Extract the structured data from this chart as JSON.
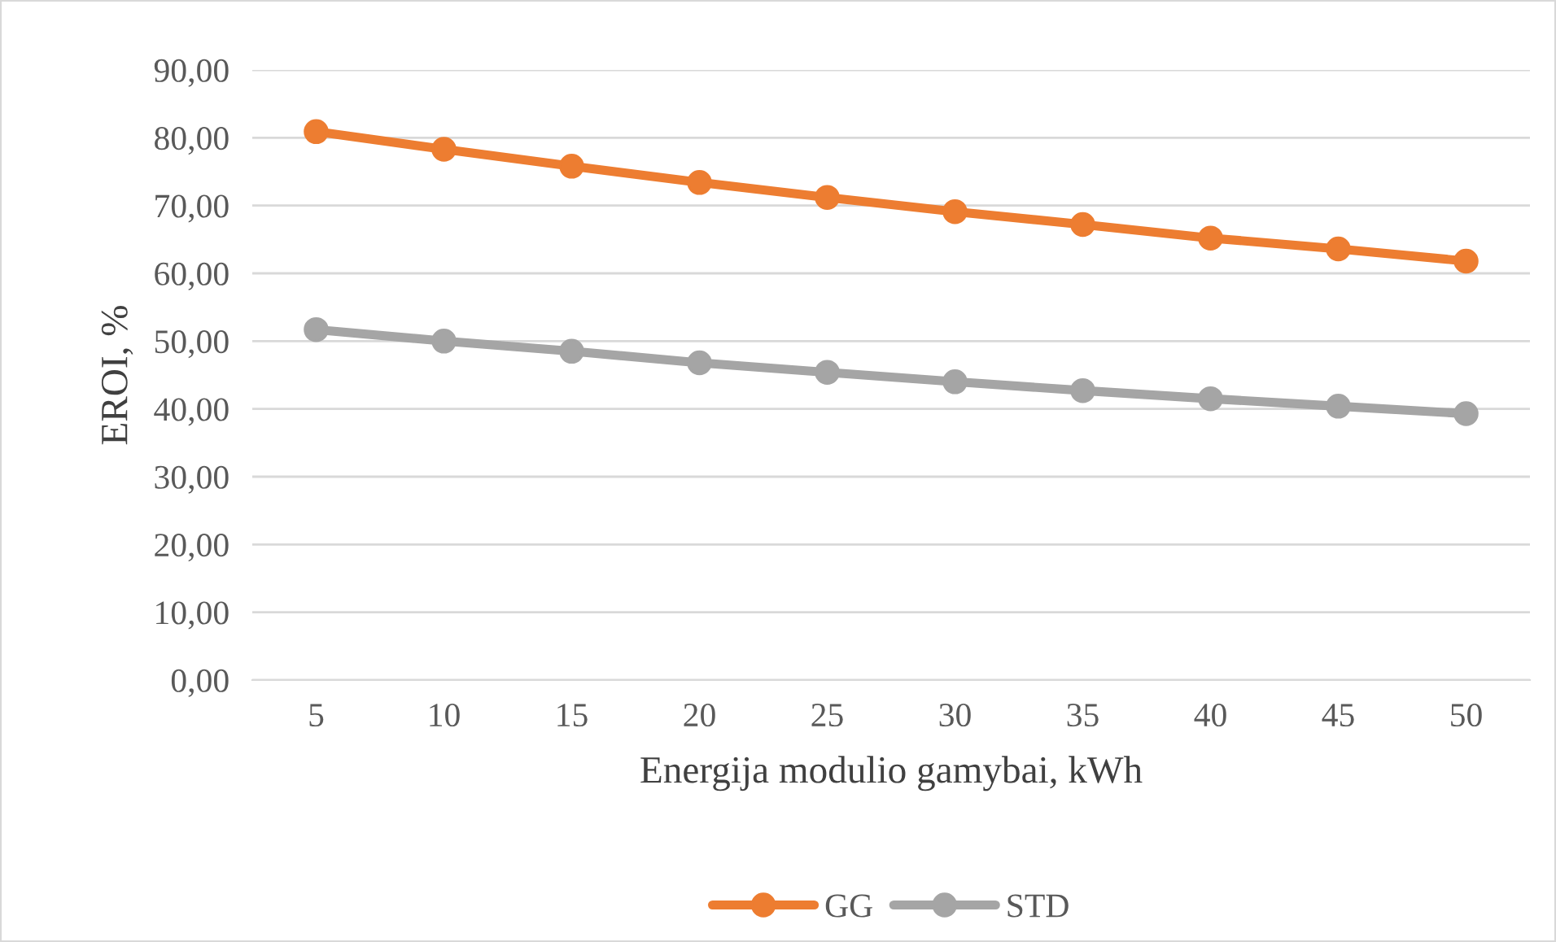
{
  "chart_data": {
    "type": "line",
    "xlabel": "Energija modulio gamybai, kWh",
    "ylabel": "EROI, %",
    "categories": [
      "5",
      "10",
      "15",
      "20",
      "25",
      "30",
      "35",
      "40",
      "45",
      "50"
    ],
    "series": [
      {
        "name": "GG",
        "color": "#ed7d31",
        "values": [
          80.9,
          78.3,
          75.8,
          73.4,
          71.2,
          69.1,
          67.2,
          65.2,
          63.6,
          61.8
        ]
      },
      {
        "name": "STD",
        "color": "#a5a5a5",
        "values": [
          51.7,
          50.0,
          48.5,
          46.8,
          45.4,
          44.0,
          42.7,
          41.5,
          40.4,
          39.3
        ]
      }
    ],
    "ylim": [
      0,
      90
    ],
    "yticks": [
      {
        "value": 0,
        "label": "0,00"
      },
      {
        "value": 10,
        "label": "10,00"
      },
      {
        "value": 20,
        "label": "20,00"
      },
      {
        "value": 30,
        "label": "30,00"
      },
      {
        "value": 40,
        "label": "40,00"
      },
      {
        "value": 50,
        "label": "50,00"
      },
      {
        "value": 60,
        "label": "60,00"
      },
      {
        "value": 70,
        "label": "70,00"
      },
      {
        "value": 80,
        "label": "80,00"
      },
      {
        "value": 90,
        "label": "90,00"
      }
    ],
    "grid": "y",
    "legend": "bottom",
    "marker": "circle",
    "line_style": "solid"
  }
}
